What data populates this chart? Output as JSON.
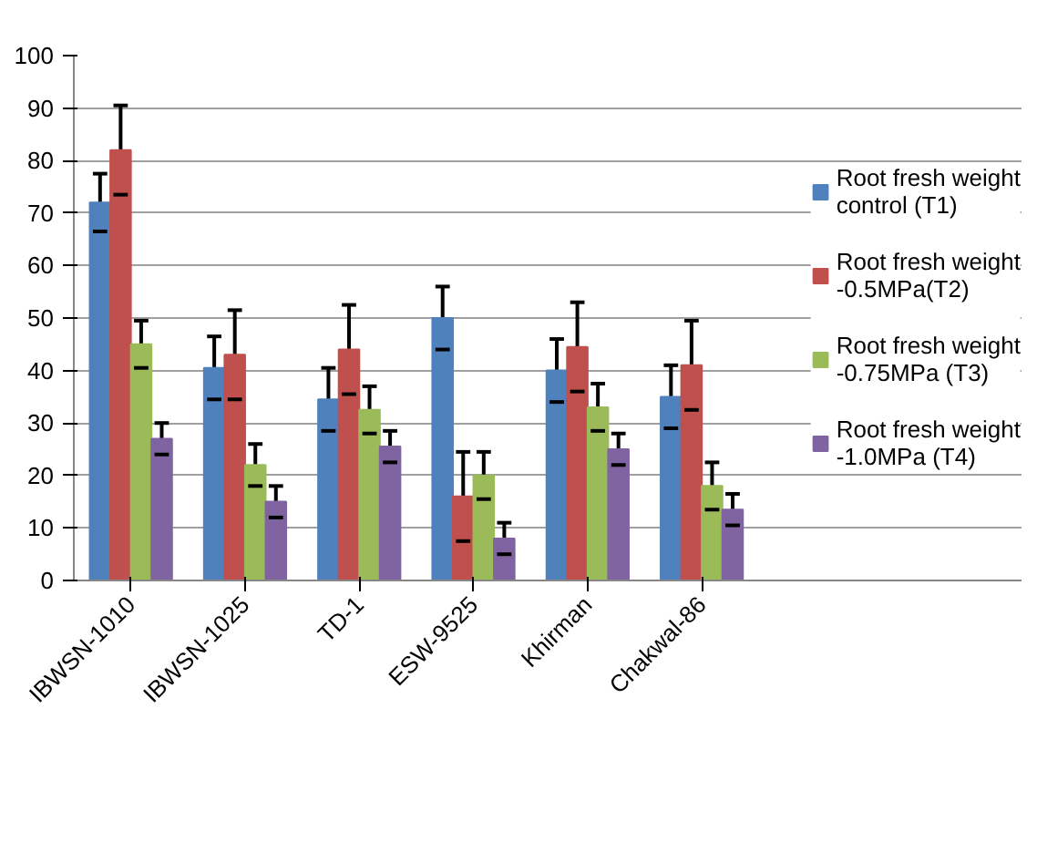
{
  "chart_data": {
    "type": "bar",
    "categories": [
      "IBWSN-1010",
      "IBWSN-1025",
      "TD-1",
      "ESW-9525",
      "Khirman",
      "Chakwal-86"
    ],
    "series": [
      {
        "name": "Root fresh weight control (T1)",
        "color": "#4f81bd",
        "values": [
          72,
          40.5,
          34.5,
          50,
          40,
          35
        ],
        "errors": [
          5.5,
          6,
          6,
          6,
          6,
          6
        ]
      },
      {
        "name": "Root fresh weight -0.5MPa(T2)",
        "color": "#c0504d",
        "values": [
          82,
          43,
          44,
          16,
          44.5,
          41
        ],
        "errors": [
          8.5,
          8.5,
          8.5,
          8.5,
          8.5,
          8.5
        ]
      },
      {
        "name": "Root fresh weight -0.75MPa (T3)",
        "color": "#9bbb59",
        "values": [
          45,
          22,
          32.5,
          20,
          33,
          18
        ],
        "errors": [
          4.5,
          4,
          4.5,
          4.5,
          4.5,
          4.5
        ]
      },
      {
        "name": "Root fresh weight -1.0MPa (T4)",
        "color": "#8064a2",
        "values": [
          27,
          15,
          25.5,
          8,
          25,
          13.5
        ],
        "errors": [
          3,
          3,
          3,
          3,
          3,
          3
        ]
      }
    ],
    "ylim": [
      0,
      100
    ],
    "yticks": [
      0,
      10,
      20,
      30,
      40,
      50,
      60,
      70,
      80,
      90,
      100
    ],
    "grid": "y",
    "legend": "right"
  }
}
